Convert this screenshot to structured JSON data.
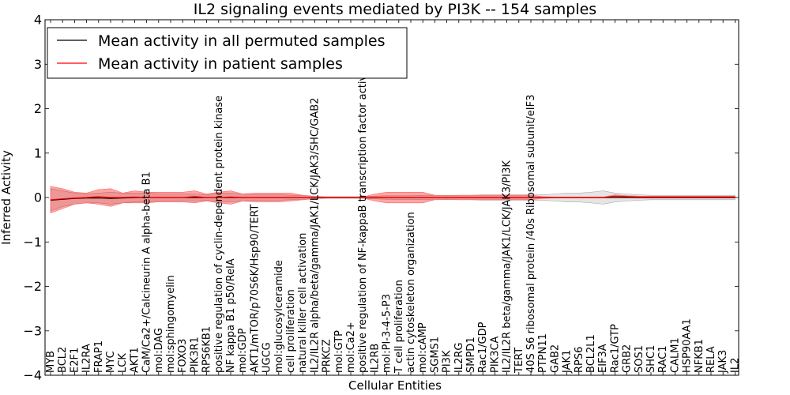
{
  "chart_data": {
    "type": "line",
    "title": "IL2 signaling events mediated by PI3K -- 154 samples",
    "xlabel": "Cellular Entities",
    "ylabel": "Inferred Activity",
    "ylim": [
      -4,
      4
    ],
    "yticks": [
      -4,
      -3,
      -2,
      -1,
      0,
      1,
      2,
      3,
      4
    ],
    "ytick_labels": [
      "−4",
      "−3",
      "−2",
      "−1",
      "0",
      "1",
      "2",
      "3",
      "4"
    ],
    "legend_position": "top-left",
    "categories": [
      "MYB",
      "BCL2",
      "E2F1",
      "IL2RA",
      "FRAP1",
      "MYC",
      "LCK",
      "AKT1",
      "CaM/Ca2+/Calcineurin A alpha-beta B1",
      "mol:DAG",
      "mol:sphingomyelin",
      "FOXO3",
      "PIK3R1",
      "RPS6KB1",
      "positive regulation of cyclin-dependent protein kinase",
      "NF kappa B1 p50/RelA",
      "mol:GDP",
      "AKT1/mTOR/p70S6K/Hsp90/TERT",
      "UGCG",
      "mol:glucosylceramide",
      "cell proliferation",
      "natural killer cell activation",
      "IL2/IL2R alpha/beta/gamma/JAK1/LCK/JAK3/SHC/GAB2",
      "PRKCZ",
      "mol:GTP",
      "mol:Ca2+",
      "positive regulation of NF-kappaB transcription factor activity",
      "IL2RB",
      "mol:PI-3-4-5-P3",
      "T cell proliferation",
      "actin cytoskeleton organization",
      "mol:cAMP",
      "SGMS1",
      "PI3K",
      "IL2RG",
      "SMPD1",
      "Rac1/GDP",
      "PIK3CA",
      "IL2/IL2R beta/gamma/JAK1/LCK/JAK3/PI3K",
      "TERT",
      "40S S6 ribosomal protein /40s Ribosomal subunit/eIF3",
      "PTPN11",
      "GAB2",
      "JAK1",
      "RPS6",
      "BCL2L1",
      "EIF3A",
      "Rac1/GTP",
      "GRB2",
      "SOS1",
      "SHC1",
      "RAC1",
      "CALM1",
      "HSP90AA1",
      "NFKB1",
      "RELA",
      "JAK3",
      "IL2"
    ],
    "series": [
      {
        "name": "Mean activity in all permuted samples",
        "color": "#000000",
        "values": [
          -0.06,
          -0.04,
          -0.02,
          -0.01,
          -0.01,
          -0.02,
          -0.01,
          0.0,
          0.0,
          0.0,
          0.0,
          0.0,
          0.0,
          0.0,
          0.0,
          0.0,
          0.0,
          0.0,
          0.0,
          0.0,
          0.0,
          0.0,
          0.0,
          0.0,
          0.0,
          0.0,
          0.0,
          0.0,
          0.0,
          0.0,
          0.0,
          0.0,
          0.0,
          0.0,
          0.0,
          0.0,
          0.0,
          0.0,
          0.0,
          0.0,
          0.0,
          0.0,
          0.0,
          0.0,
          0.0,
          0.0,
          0.0,
          0.0,
          0.0,
          0.0,
          0.0,
          0.0,
          0.0,
          0.0,
          0.0,
          0.0,
          0.0,
          0.0
        ],
        "upper": [
          0.2,
          0.15,
          0.1,
          0.08,
          0.1,
          0.12,
          0.1,
          0.1,
          0.1,
          0.08,
          0.08,
          0.08,
          0.08,
          0.06,
          0.1,
          0.1,
          0.08,
          0.06,
          0.06,
          0.06,
          0.05,
          0.05,
          0.03,
          0.02,
          0.02,
          0.02,
          0.02,
          0.03,
          0.04,
          0.04,
          0.04,
          0.05,
          0.05,
          0.05,
          0.05,
          0.05,
          0.06,
          0.06,
          0.06,
          0.06,
          0.06,
          0.06,
          0.08,
          0.1,
          0.1,
          0.12,
          0.15,
          0.1,
          0.08,
          0.06,
          0.05,
          0.05,
          0.05,
          0.05,
          0.05,
          0.05,
          0.05,
          0.05
        ],
        "lower": [
          -0.3,
          -0.2,
          -0.15,
          -0.12,
          -0.12,
          -0.15,
          -0.12,
          -0.1,
          -0.1,
          -0.08,
          -0.08,
          -0.08,
          -0.08,
          -0.06,
          -0.1,
          -0.1,
          -0.08,
          -0.06,
          -0.06,
          -0.06,
          -0.05,
          -0.05,
          -0.03,
          -0.02,
          -0.02,
          -0.02,
          -0.02,
          -0.03,
          -0.04,
          -0.04,
          -0.04,
          -0.05,
          -0.05,
          -0.05,
          -0.05,
          -0.05,
          -0.06,
          -0.06,
          -0.06,
          -0.06,
          -0.06,
          -0.06,
          -0.08,
          -0.1,
          -0.1,
          -0.12,
          -0.15,
          -0.1,
          -0.08,
          -0.06,
          -0.05,
          -0.05,
          -0.05,
          -0.05,
          -0.05,
          -0.05,
          -0.05,
          -0.05
        ]
      },
      {
        "name": "Mean activity in patient samples",
        "color": "#ff0000",
        "values": [
          -0.05,
          -0.03,
          -0.01,
          0.0,
          0.02,
          0.0,
          0.0,
          0.01,
          0.0,
          0.0,
          0.0,
          0.0,
          0.02,
          0.0,
          0.0,
          0.01,
          0.0,
          0.0,
          0.0,
          0.0,
          0.0,
          0.0,
          0.0,
          0.0,
          0.0,
          0.0,
          0.0,
          0.0,
          0.0,
          0.0,
          0.0,
          0.0,
          0.0,
          0.0,
          0.0,
          0.0,
          0.0,
          0.0,
          0.0,
          0.0,
          0.0,
          0.0,
          0.0,
          0.0,
          0.0,
          0.0,
          0.0,
          0.03,
          0.02,
          0.01,
          0.01,
          0.01,
          0.01,
          0.01,
          0.01,
          0.01,
          0.01,
          0.01
        ],
        "upper": [
          0.25,
          0.2,
          0.12,
          0.1,
          0.18,
          0.2,
          0.1,
          0.15,
          0.12,
          0.12,
          0.12,
          0.12,
          0.15,
          0.08,
          0.12,
          0.15,
          0.08,
          0.1,
          0.1,
          0.1,
          0.1,
          0.05,
          0.02,
          0.01,
          0.01,
          0.01,
          0.01,
          0.08,
          0.12,
          0.12,
          0.12,
          0.12,
          0.05,
          0.04,
          0.05,
          0.05,
          0.05,
          0.05,
          0.05,
          0.05,
          0.05,
          0.02,
          0.01,
          0.01,
          0.01,
          0.01,
          0.01,
          0.06,
          0.04,
          0.03,
          0.03,
          0.03,
          0.03,
          0.03,
          0.03,
          0.03,
          0.03,
          0.03
        ],
        "lower": [
          -0.35,
          -0.25,
          -0.15,
          -0.12,
          -0.15,
          -0.2,
          -0.12,
          -0.12,
          -0.12,
          -0.1,
          -0.1,
          -0.1,
          -0.12,
          -0.08,
          -0.12,
          -0.15,
          -0.08,
          -0.1,
          -0.1,
          -0.1,
          -0.08,
          -0.05,
          -0.02,
          -0.01,
          -0.01,
          -0.01,
          -0.01,
          -0.08,
          -0.12,
          -0.12,
          -0.12,
          -0.12,
          -0.05,
          -0.04,
          -0.05,
          -0.05,
          -0.05,
          -0.05,
          -0.05,
          -0.05,
          -0.05,
          -0.02,
          -0.01,
          -0.01,
          -0.01,
          -0.01,
          -0.01,
          0.0,
          0.0,
          -0.01,
          -0.01,
          -0.01,
          -0.01,
          -0.01,
          -0.01,
          -0.01,
          -0.01,
          -0.01
        ]
      }
    ]
  }
}
